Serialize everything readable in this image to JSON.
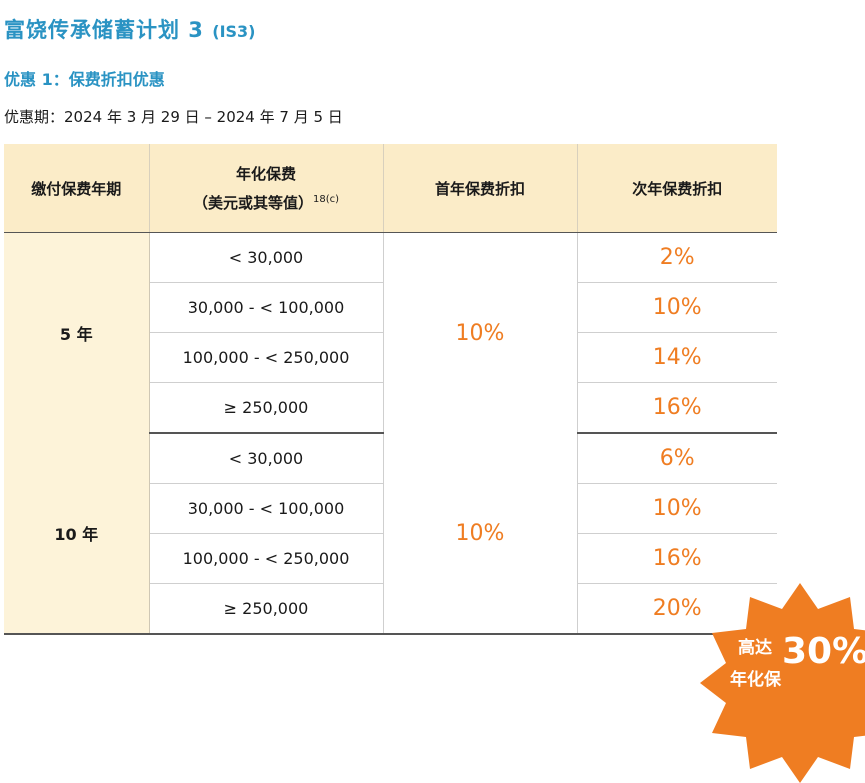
{
  "title": "富饶传承储蓄计划 3",
  "title_code": "(IS3)",
  "offer_label": "优惠 1：保费折扣优惠",
  "period": "优惠期：2024 年 3 月 29 日 – 2024 年 7 月 5 日",
  "table": {
    "headers": {
      "term": "缴付保费年期",
      "annual_line1": "年化保费",
      "annual_line2": "（美元或其等值）",
      "annual_sup": "18(c)",
      "first_year": "首年保费折扣",
      "second_year": "次年保费折扣"
    },
    "groups": [
      {
        "term": "5 年",
        "first_year_discount": "10%",
        "rows": [
          {
            "range": "< 30,000",
            "second_year": "2%"
          },
          {
            "range": "30,000 - < 100,000",
            "second_year": "10%"
          },
          {
            "range": "100,000 - < 250,000",
            "second_year": "14%"
          },
          {
            "range": "≥ 250,000",
            "second_year": "16%"
          }
        ]
      },
      {
        "term": "10 年",
        "first_year_discount": "10%",
        "rows": [
          {
            "range": "< 30,000",
            "second_year": "6%"
          },
          {
            "range": "30,000 - < 100,000",
            "second_year": "10%"
          },
          {
            "range": "100,000 - < 250,000",
            "second_year": "16%"
          },
          {
            "range": "≥ 250,000",
            "second_year": "20%"
          }
        ]
      }
    ]
  },
  "badge": {
    "line1": "高达",
    "value": "30%",
    "line2": "年化保",
    "color": "#ef7d22"
  }
}
